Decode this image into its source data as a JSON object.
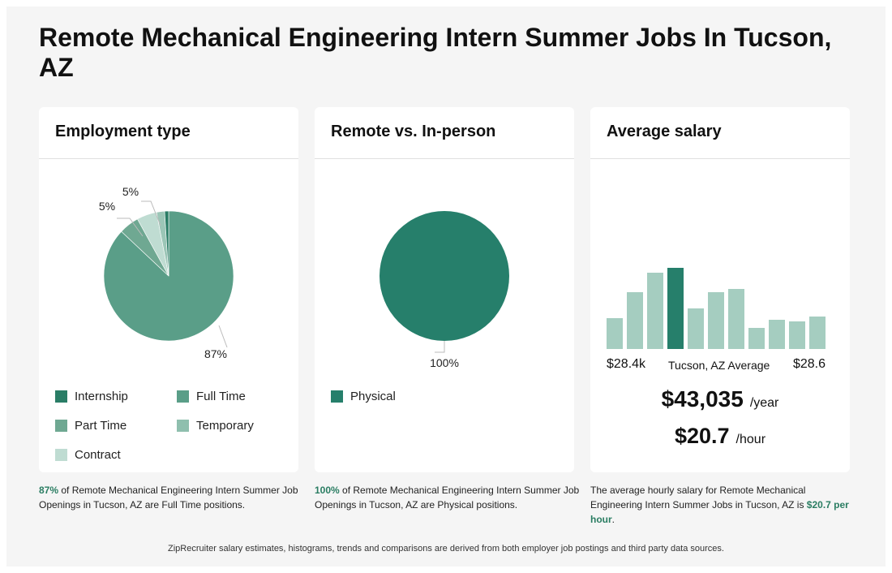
{
  "page": {
    "title": "Remote Mechanical Engineering Intern Summer Jobs In Tucson, AZ"
  },
  "colors": {
    "internship": "#2a7d66",
    "full_time": "#5a9e88",
    "part_time": "#6fa892",
    "temporary": "#8fbfae",
    "contract": "#bfdcd2",
    "physical": "#267f6b",
    "hist_bar": "#a5cdc0",
    "hist_highlight": "#267f6b",
    "highlight_text": "#2a7d62"
  },
  "cards": {
    "employment": {
      "title": "Employment type"
    },
    "remote": {
      "title": "Remote vs. In-person"
    },
    "salary": {
      "title": "Average salary"
    }
  },
  "chart_data": [
    {
      "type": "pie",
      "name": "employment-type",
      "slices": [
        {
          "label": "Full Time",
          "value": 87,
          "color": "#5a9e88",
          "display": "87%"
        },
        {
          "label": "Part Time",
          "value": 5,
          "color": "#6fa892",
          "display": "5%"
        },
        {
          "label": "Temporary",
          "value": 5,
          "color": "#bfdcd2",
          "display": "5%"
        },
        {
          "label": "Contract",
          "value": 2,
          "color": "#9cc6b7",
          "display": ""
        },
        {
          "label": "Internship",
          "value": 1,
          "color": "#2a7d66",
          "display": ""
        }
      ],
      "legend": [
        {
          "label": "Internship",
          "color": "#2a7d66"
        },
        {
          "label": "Full Time",
          "color": "#5a9e88"
        },
        {
          "label": "Part Time",
          "color": "#6fa892"
        },
        {
          "label": "Temporary",
          "color": "#8fbfae"
        },
        {
          "label": "Contract",
          "color": "#bfdcd2"
        }
      ]
    },
    {
      "type": "pie",
      "name": "remote-vs-in-person",
      "slices": [
        {
          "label": "Physical",
          "value": 100,
          "color": "#267f6b",
          "display": "100%"
        }
      ],
      "legend": [
        {
          "label": "Physical",
          "color": "#267f6b"
        }
      ]
    },
    {
      "type": "bar",
      "name": "salary-histogram",
      "values": [
        38,
        70,
        94,
        100,
        50,
        70,
        74,
        26,
        36,
        34,
        40
      ],
      "highlight_index": 3,
      "ylim": [
        0,
        100
      ],
      "x_min_label": "$28.4k",
      "x_max_label": "$28.6",
      "avg_label": "Tucson, AZ Average"
    }
  ],
  "salary": {
    "yearly": "$43,035",
    "yearly_unit": "/year",
    "hourly": "$20.7",
    "hourly_unit": "/hour"
  },
  "descriptions": {
    "employment_pct": "87%",
    "employment_text": " of Remote Mechanical Engineering Intern Summer Job Openings in Tucson, AZ are Full Time positions.",
    "remote_pct": "100%",
    "remote_text": " of Remote Mechanical Engineering Intern Summer Job Openings in Tucson, AZ are Physical positions.",
    "salary_text": "The average hourly salary for Remote Mechanical Engineering Intern Summer Jobs in Tucson, AZ is ",
    "salary_hl": "$20.7 per hour",
    "salary_end": "."
  },
  "footer": {
    "text": "ZipRecruiter salary estimates, histograms, trends and comparisons are derived from both employer job postings and third party data sources."
  }
}
